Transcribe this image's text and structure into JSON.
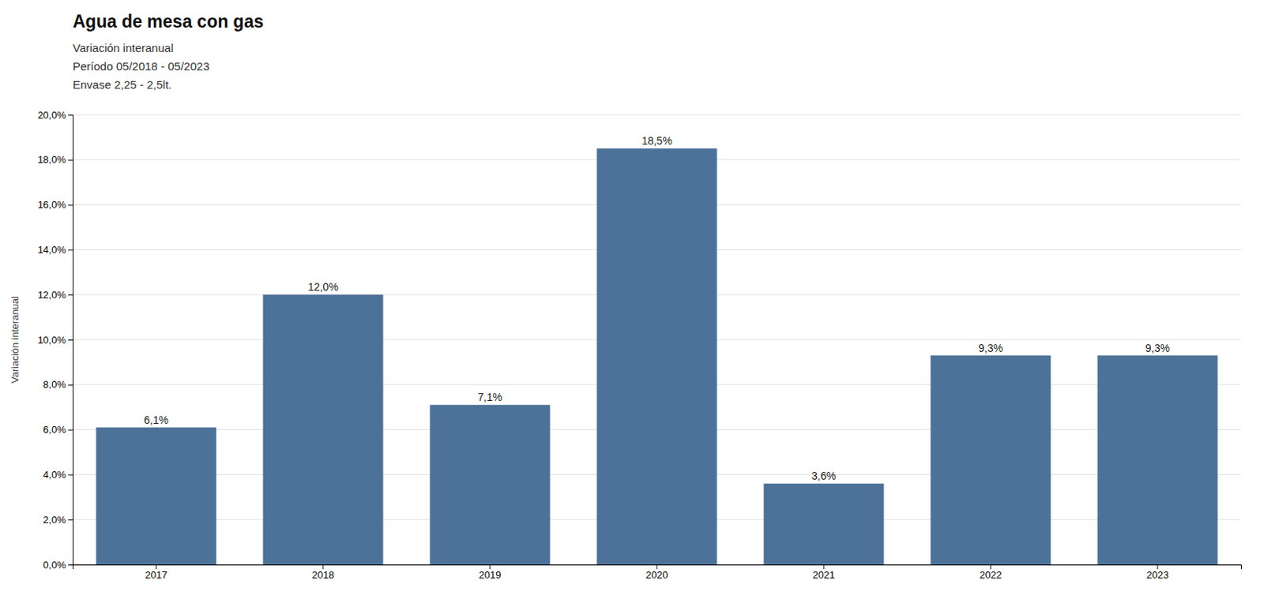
{
  "chart_data": {
    "type": "bar",
    "title": "Agua de mesa con gas",
    "subtitle": [
      "Variación interanual",
      "Período 05/2018 - 05/2023",
      "Envase 2,25 - 2,5lt."
    ],
    "ylabel": "Variación interanual",
    "categories": [
      "2017",
      "2018",
      "2019",
      "2020",
      "2021",
      "2022",
      "2023"
    ],
    "values": [
      0.061,
      0.12,
      0.071,
      0.185,
      0.036,
      0.093,
      0.093
    ],
    "value_labels": [
      "6,1%",
      "12,0%",
      "7,1%",
      "18,5%",
      "3,6%",
      "9,3%",
      "9,3%"
    ],
    "data_labels": true,
    "color": "#4d729a",
    "ylim": [
      0,
      0.2
    ],
    "yticks": [
      {
        "value": 0.0,
        "label": "0,0%"
      },
      {
        "value": 0.02,
        "label": "2,0%"
      },
      {
        "value": 0.04,
        "label": "4,0%"
      },
      {
        "value": 0.06,
        "label": "6,0%"
      },
      {
        "value": 0.08,
        "label": "8,0%"
      },
      {
        "value": 0.1,
        "label": "10,0%"
      },
      {
        "value": 0.12,
        "label": "12,0%"
      },
      {
        "value": 0.14,
        "label": "14,0%"
      },
      {
        "value": 0.16,
        "label": "16,0%"
      },
      {
        "value": 0.18,
        "label": "18,0%"
      },
      {
        "value": 0.2,
        "label": "20,0%"
      }
    ],
    "grid": true
  }
}
